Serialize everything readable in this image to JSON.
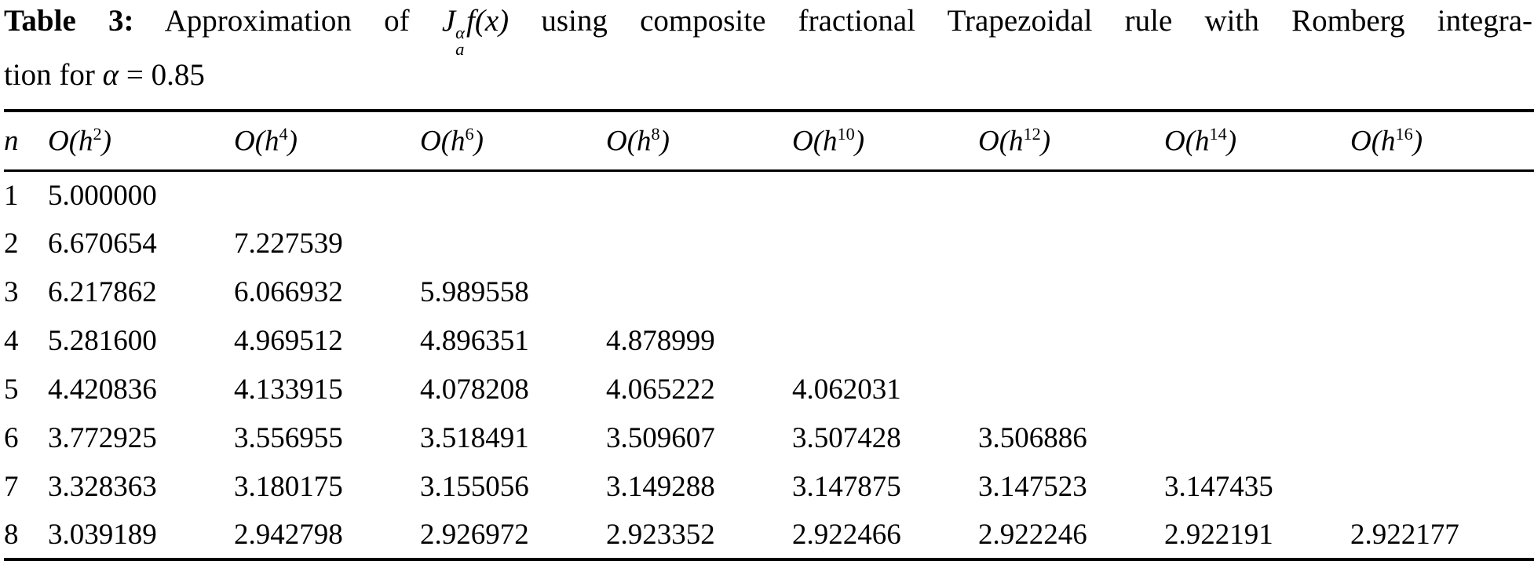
{
  "caption": {
    "label": "Table 3:",
    "text_before_math": "Approximation of",
    "math": {
      "J": "J",
      "sup": "α",
      "sub": "a",
      "fx": "f(x)"
    },
    "text_after_math": "using composite fractional Trapezoidal rule with Romberg integra-",
    "line2_text": "tion for",
    "line2_alpha": "α",
    "line2_eq": "= 0.85"
  },
  "table": {
    "n_header": "n",
    "order_headers": [
      {
        "base": "O(h",
        "exp": "2",
        "close": ")"
      },
      {
        "base": "O(h",
        "exp": "4",
        "close": ")"
      },
      {
        "base": "O(h",
        "exp": "6",
        "close": ")"
      },
      {
        "base": "O(h",
        "exp": "8",
        "close": ")"
      },
      {
        "base": "O(h",
        "exp": "10",
        "close": ")"
      },
      {
        "base": "O(h",
        "exp": "12",
        "close": ")"
      },
      {
        "base": "O(h",
        "exp": "14",
        "close": ")"
      },
      {
        "base": "O(h",
        "exp": "16",
        "close": ")"
      }
    ],
    "rows": [
      {
        "n": "1",
        "values": [
          "5.000000"
        ]
      },
      {
        "n": "2",
        "values": [
          "6.670654",
          "7.227539"
        ]
      },
      {
        "n": "3",
        "values": [
          "6.217862",
          "6.066932",
          "5.989558"
        ]
      },
      {
        "n": "4",
        "values": [
          "5.281600",
          "4.969512",
          "4.896351",
          "4.878999"
        ]
      },
      {
        "n": "5",
        "values": [
          "4.420836",
          "4.133915",
          "4.078208",
          "4.065222",
          "4.062031"
        ]
      },
      {
        "n": "6",
        "values": [
          "3.772925",
          "3.556955",
          "3.518491",
          "3.509607",
          "3.507428",
          "3.506886"
        ]
      },
      {
        "n": "7",
        "values": [
          "3.328363",
          "3.180175",
          "3.155056",
          "3.149288",
          "3.147875",
          "3.147523",
          "3.147435"
        ]
      },
      {
        "n": "8",
        "values": [
          "3.039189",
          "2.942798",
          "2.926972",
          "2.923352",
          "2.922466",
          "2.922246",
          "2.922191",
          "2.922177"
        ]
      }
    ]
  }
}
